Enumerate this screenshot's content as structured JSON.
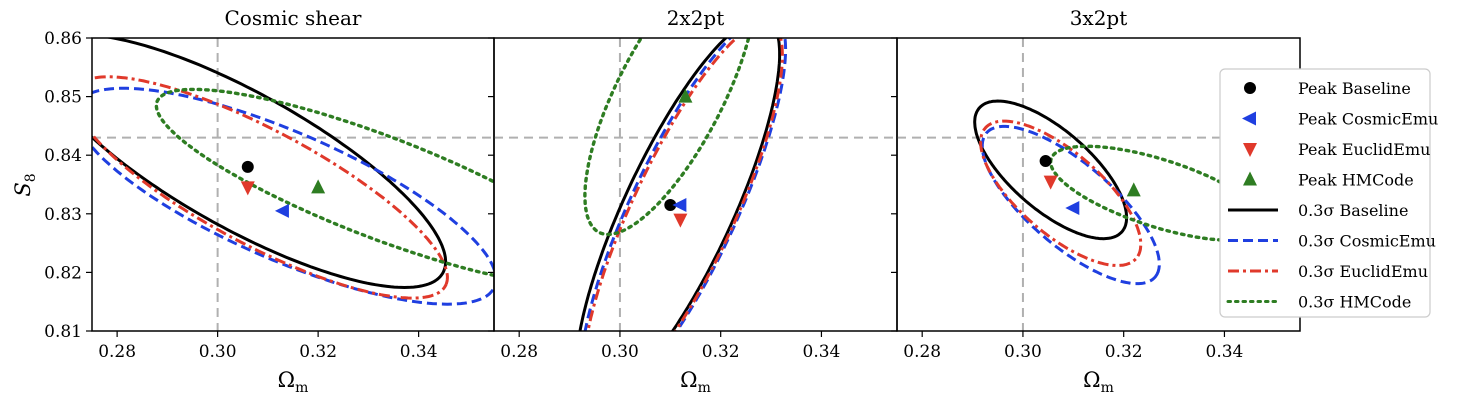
{
  "chart_data": {
    "type": "scatter",
    "ylabel": "S8",
    "xlim": [
      0.275,
      0.355
    ],
    "ylim": [
      0.81,
      0.86
    ],
    "xticks": [
      "0.28",
      "0.30",
      "0.32",
      "0.34"
    ],
    "yticks": [
      "0.81",
      "0.82",
      "0.83",
      "0.84",
      "0.85",
      "0.86"
    ],
    "reference_lines": {
      "x": 0.3,
      "y": 0.843
    },
    "legend_position": "right",
    "colors": {
      "baseline": "#000000",
      "cosmicemu": "#1f3fe0",
      "euclidemu": "#e0392b",
      "hmcode": "#2e7d22",
      "reference": "#b0b0b0"
    },
    "legend": [
      {
        "label": "Peak Baseline",
        "marker": "circle",
        "color": "#000000"
      },
      {
        "label": "Peak CosmicEmu",
        "marker": "triangle-left",
        "color": "#1f3fe0"
      },
      {
        "label": "Peak EuclidEmu",
        "marker": "triangle-down",
        "color": "#e0392b"
      },
      {
        "label": "Peak HMCode",
        "marker": "triangle-up",
        "color": "#2e7d22"
      },
      {
        "label": "0.3σ Baseline",
        "line": "solid",
        "color": "#000000"
      },
      {
        "label": "0.3σ CosmicEmu",
        "line": "dashed",
        "color": "#1f3fe0"
      },
      {
        "label": "0.3σ EuclidEmu",
        "line": "dashdot",
        "color": "#e0392b"
      },
      {
        "label": "0.3σ HMCode",
        "line": "dotted",
        "color": "#2e7d22"
      }
    ],
    "panels": [
      {
        "title": "Cosmic shear",
        "xlabel": "Ωm",
        "peaks": [
          {
            "series": "Baseline",
            "marker": "circle",
            "x": 0.306,
            "y": 0.838
          },
          {
            "series": "CosmicEmu",
            "marker": "triangle-left",
            "x": 0.313,
            "y": 0.8305
          },
          {
            "series": "EuclidEmu",
            "marker": "triangle-down",
            "x": 0.306,
            "y": 0.8345
          },
          {
            "series": "HMCode",
            "marker": "triangle-up",
            "x": 0.32,
            "y": 0.8345
          }
        ],
        "contours": [
          {
            "series": "Baseline",
            "style": "solid",
            "cx": 0.305,
            "cy": 0.839,
            "a": 0.0442,
            "b": 0.0119,
            "angle": -25
          },
          {
            "series": "CosmicEmu",
            "style": "dashed",
            "cx": 0.3135,
            "cy": 0.833,
            "a": 0.0444,
            "b": 0.0111,
            "angle": -20
          },
          {
            "series": "EuclidEmu",
            "style": "dashdot",
            "cx": 0.3085,
            "cy": 0.8345,
            "a": 0.0405,
            "b": 0.0101,
            "angle": -24
          },
          {
            "series": "HMCode",
            "style": "dotted",
            "cx": 0.3325,
            "cy": 0.8345,
            "a": 0.0469,
            "b": 0.0088,
            "angle": -18
          }
        ]
      },
      {
        "title": "2x2pt",
        "xlabel": "Ωm",
        "peaks": [
          {
            "series": "Baseline",
            "marker": "circle",
            "x": 0.31,
            "y": 0.8315
          },
          {
            "series": "CosmicEmu",
            "marker": "triangle-left",
            "x": 0.312,
            "y": 0.8315
          },
          {
            "series": "EuclidEmu",
            "marker": "triangle-down",
            "x": 0.312,
            "y": 0.829
          },
          {
            "series": "HMCode",
            "marker": "triangle-up",
            "x": 0.313,
            "y": 0.85
          }
        ],
        "contours": [
          {
            "series": "Baseline",
            "style": "solid",
            "cx": 0.3115,
            "cy": 0.8305,
            "a": 0.0372,
            "b": 0.0104,
            "angle": 61
          },
          {
            "series": "CosmicEmu",
            "style": "dashed",
            "cx": 0.3125,
            "cy": 0.8305,
            "a": 0.0378,
            "b": 0.0102,
            "angle": 61
          },
          {
            "series": "EuclidEmu",
            "style": "dashdot",
            "cx": 0.3125,
            "cy": 0.8302,
            "a": 0.0367,
            "b": 0.0098,
            "angle": 61
          },
          {
            "series": "HMCode",
            "style": "dotted",
            "cx": 0.31,
            "cy": 0.8505,
            "a": 0.0276,
            "b": 0.0101,
            "angle": 58
          }
        ]
      },
      {
        "title": "3x2pt",
        "xlabel": "Ωm",
        "peaks": [
          {
            "series": "Baseline",
            "marker": "circle",
            "x": 0.3045,
            "y": 0.839
          },
          {
            "series": "CosmicEmu",
            "marker": "triangle-left",
            "x": 0.31,
            "y": 0.831
          },
          {
            "series": "EuclidEmu",
            "marker": "triangle-down",
            "x": 0.3055,
            "y": 0.8355
          },
          {
            "series": "HMCode",
            "marker": "triangle-up",
            "x": 0.322,
            "y": 0.834
          }
        ],
        "contours": [
          {
            "series": "Baseline",
            "style": "solid",
            "cx": 0.3055,
            "cy": 0.8375,
            "a": 0.0177,
            "b": 0.0072,
            "angle": -35
          },
          {
            "series": "CosmicEmu",
            "style": "dashed",
            "cx": 0.3095,
            "cy": 0.8315,
            "a": 0.0208,
            "b": 0.0075,
            "angle": -35
          },
          {
            "series": "EuclidEmu",
            "style": "dashdot",
            "cx": 0.3075,
            "cy": 0.8335,
            "a": 0.0187,
            "b": 0.0074,
            "angle": -35
          },
          {
            "series": "HMCode",
            "style": "dotted",
            "cx": 0.327,
            "cy": 0.8335,
            "a": 0.0222,
            "b": 0.0058,
            "angle": -15
          }
        ]
      }
    ]
  }
}
